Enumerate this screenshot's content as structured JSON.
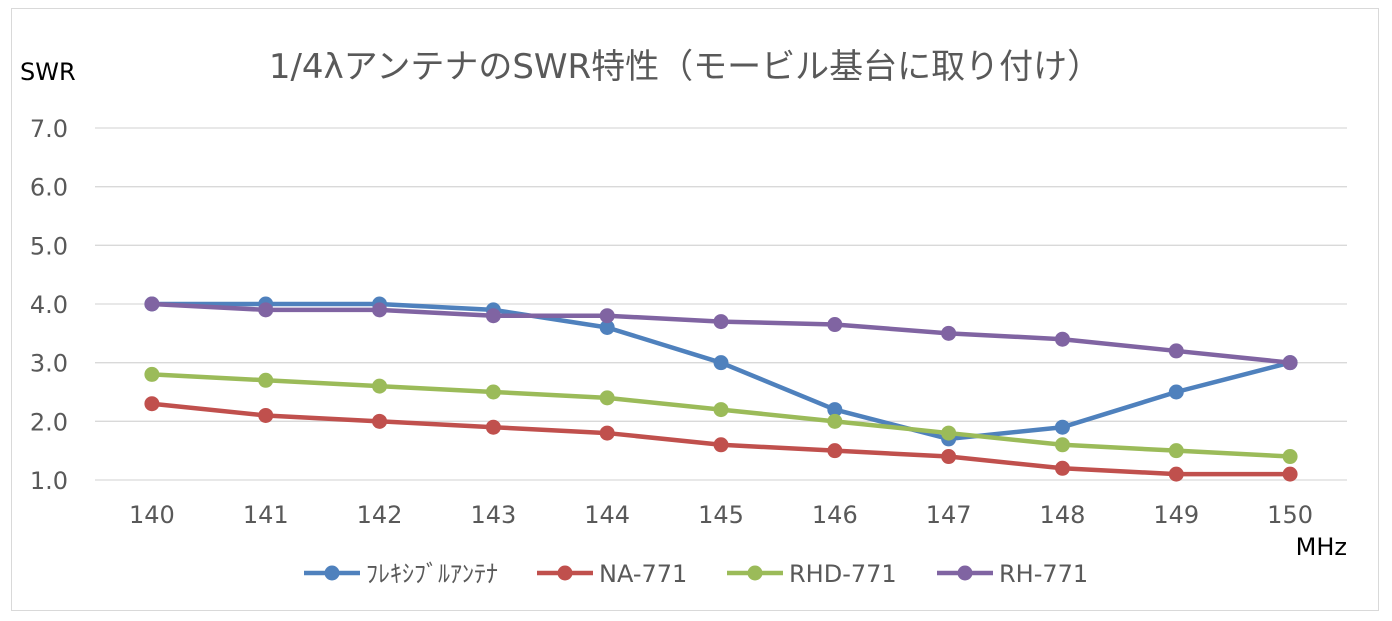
{
  "chart_data": {
    "type": "line",
    "title": "1/4λアンテナのSWR特性（モービル基台に取り付け）",
    "ylabel": "SWR",
    "xlabel": "MHz",
    "categories": [
      "140",
      "141",
      "142",
      "143",
      "144",
      "145",
      "146",
      "147",
      "148",
      "149",
      "150"
    ],
    "y_ticks": [
      "1.0",
      "2.0",
      "3.0",
      "4.0",
      "5.0",
      "6.0",
      "7.0"
    ],
    "ylim": [
      1,
      7
    ],
    "grid": true,
    "legend_position": "bottom",
    "series": [
      {
        "name": "ﾌﾚｷｼﾌﾞﾙｱﾝﾃﾅ",
        "color": "#4f81bd",
        "values": [
          4.0,
          4.0,
          4.0,
          3.9,
          3.6,
          3.0,
          2.2,
          1.7,
          1.9,
          2.5,
          3.0
        ]
      },
      {
        "name": "NA-771",
        "color": "#c0504d",
        "values": [
          2.3,
          2.1,
          2.0,
          1.9,
          1.8,
          1.6,
          1.5,
          1.4,
          1.2,
          1.1,
          1.1
        ]
      },
      {
        "name": "RHD-771",
        "color": "#9bbb59",
        "values": [
          2.8,
          2.7,
          2.6,
          2.5,
          2.4,
          2.2,
          2.0,
          1.8,
          1.6,
          1.5,
          1.4
        ]
      },
      {
        "name": "RH-771",
        "color": "#8064a2",
        "values": [
          4.0,
          3.9,
          3.9,
          3.8,
          3.8,
          3.7,
          3.65,
          3.5,
          3.4,
          3.2,
          3.0
        ]
      }
    ]
  }
}
